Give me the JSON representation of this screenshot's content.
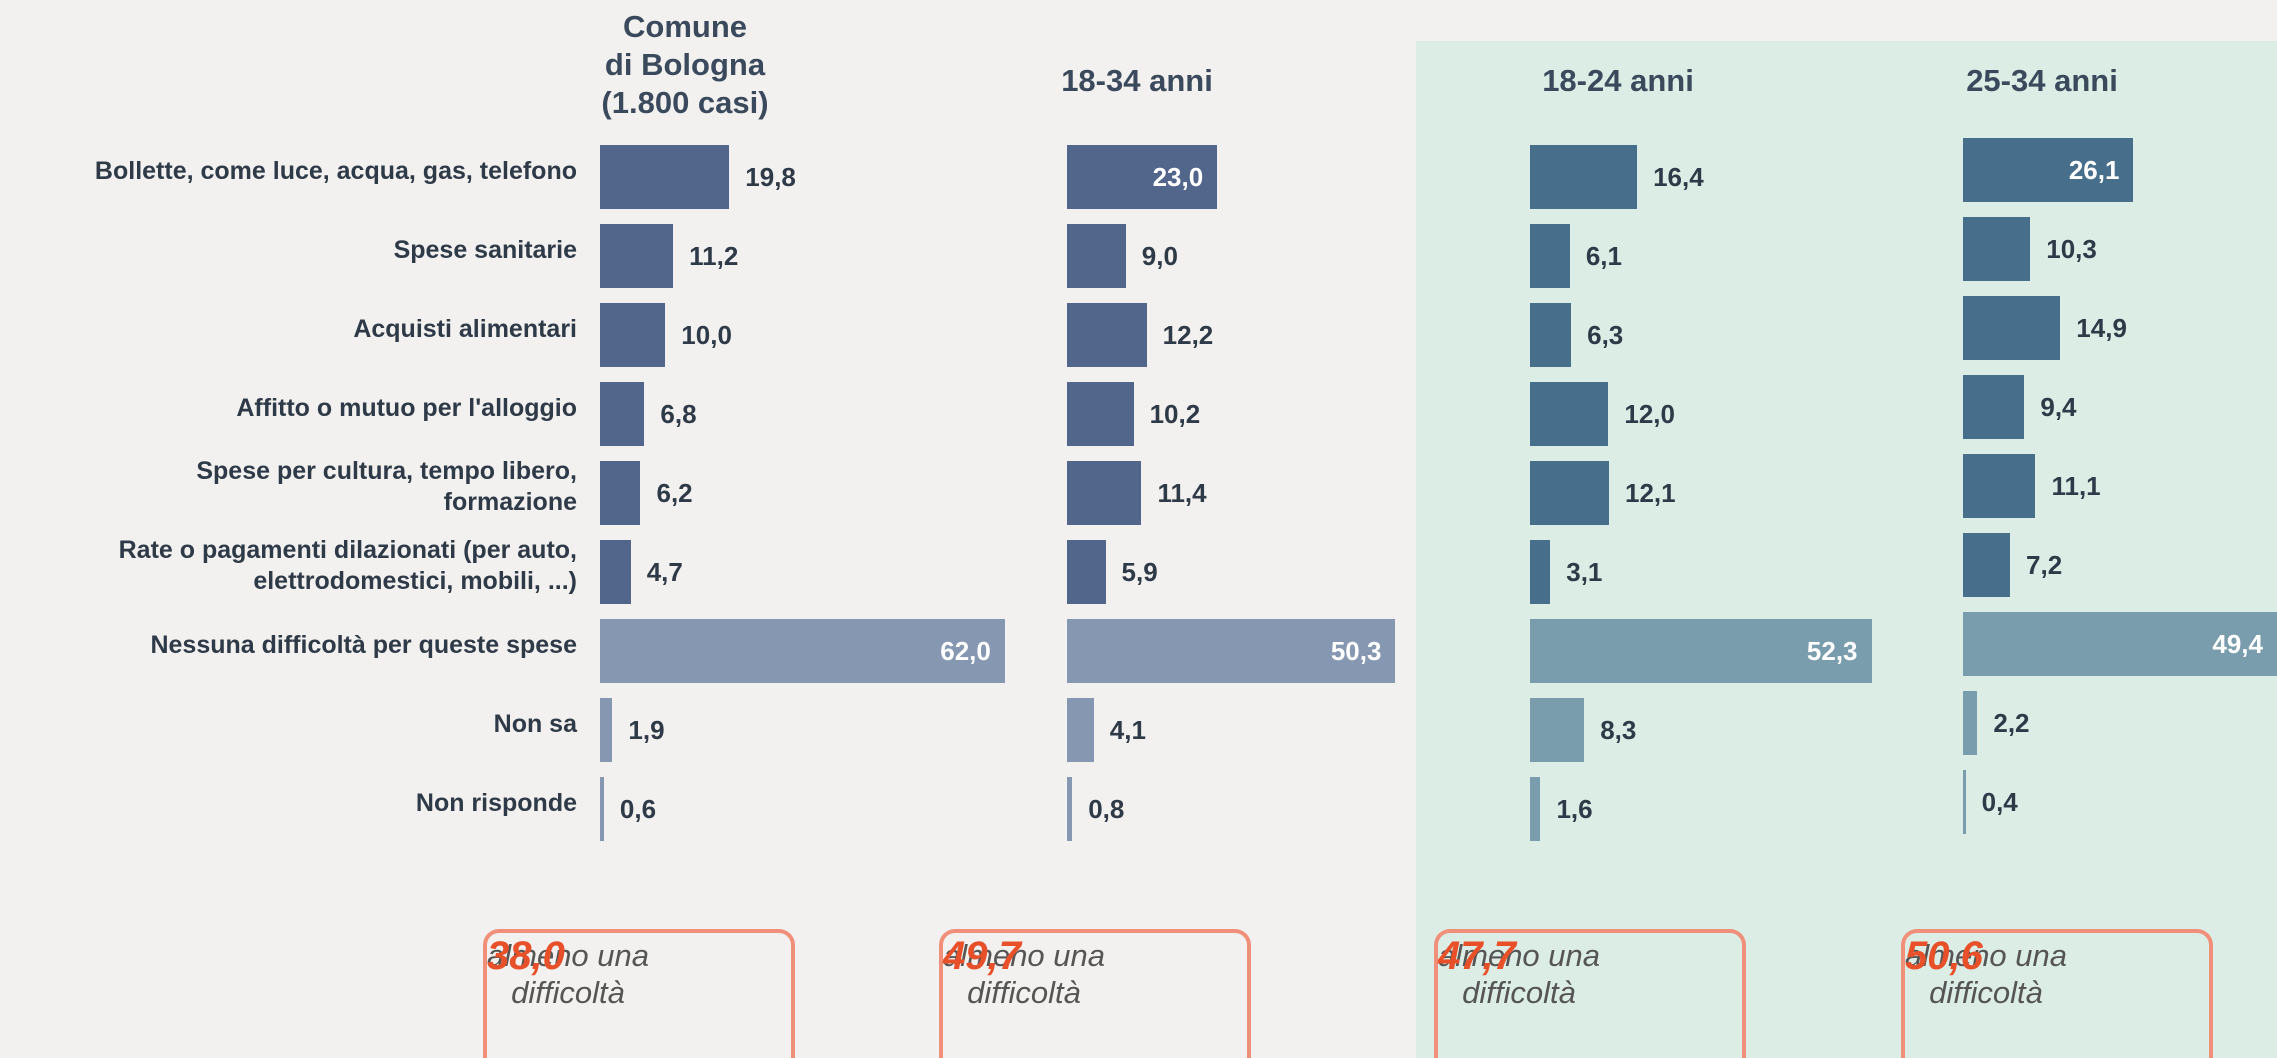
{
  "chart_data": [
    {
      "type": "bar",
      "orientation": "horizontal",
      "title": "Comune\ndi Bologna\n(1.800 casi)",
      "categories": [
        "Bollette, come luce, acqua, gas, telefono",
        "Spese sanitarie",
        "Acquisti alimentari",
        "Affitto o mutuo per l'alloggio",
        "Spese per cultura, tempo libero,\nformazione",
        "Rate o pagamenti dilazionati (per auto,\nelettrodomestici, mobili, ...)",
        "Nessuna difficoltà per queste spese",
        "Non sa",
        "Non risponde"
      ],
      "values": [
        19.8,
        11.2,
        10.0,
        6.8,
        6.2,
        4.7,
        62.0,
        1.9,
        0.6
      ],
      "value_labels": [
        "19,8",
        "11,2",
        "10,0",
        "6,8",
        "6,2",
        "4,7",
        "62,0",
        "1,9",
        "0,6"
      ],
      "colors": [
        "#52658a",
        "#52658a",
        "#52658a",
        "#52658a",
        "#52658a",
        "#52658a",
        "#8597b1",
        "#8597b1",
        "#8597b1"
      ],
      "summary": {
        "text": "almeno una\ndifficoltà",
        "value": 38.0,
        "label": "38,0"
      }
    },
    {
      "type": "bar",
      "orientation": "horizontal",
      "title": "18-34 anni",
      "values": [
        23.0,
        9.0,
        12.2,
        10.2,
        11.4,
        5.9,
        50.3,
        4.1,
        0.8
      ],
      "value_labels": [
        "23,0",
        "9,0",
        "12,2",
        "10,2",
        "11,4",
        "5,9",
        "50,3",
        "4,1",
        "0,8"
      ],
      "colors": [
        "#52658a",
        "#52658a",
        "#52658a",
        "#52658a",
        "#52658a",
        "#52658a",
        "#8597b1",
        "#8597b1",
        "#8597b1"
      ],
      "summary": {
        "text": "almeno una\ndifficoltà",
        "value": 49.7,
        "label": "49,7"
      }
    },
    {
      "type": "bar",
      "orientation": "horizontal",
      "title": "18-24 anni",
      "values": [
        16.4,
        6.1,
        6.3,
        12.0,
        12.1,
        3.1,
        52.3,
        8.3,
        1.6
      ],
      "value_labels": [
        "16,4",
        "6,1",
        "6,3",
        "12,0",
        "12,1",
        "3,1",
        "52,3",
        "8,3",
        "1,6"
      ],
      "colors": [
        "#476f8b",
        "#476f8b",
        "#476f8b",
        "#476f8b",
        "#476f8b",
        "#476f8b",
        "#7a9dae",
        "#7a9dae",
        "#7a9dae"
      ],
      "summary": {
        "text": "almeno una\ndifficoltà",
        "value": 47.7,
        "label": "47,7"
      }
    },
    {
      "type": "bar",
      "orientation": "horizontal",
      "title": "25-34 anni",
      "values": [
        26.1,
        10.3,
        14.9,
        9.4,
        11.1,
        7.2,
        49.4,
        2.2,
        0.4
      ],
      "value_labels": [
        "26,1",
        "10,3",
        "14,9",
        "9,4",
        "11,1",
        "7,2",
        "49,4",
        "2,2",
        "0,4"
      ],
      "colors": [
        "#476f8b",
        "#476f8b",
        "#476f8b",
        "#476f8b",
        "#476f8b",
        "#476f8b",
        "#7a9dae",
        "#7a9dae",
        "#7a9dae"
      ],
      "summary": {
        "text": "almeno una\ndifficoltà",
        "value": 50.6,
        "label": "50,6"
      }
    }
  ]
}
